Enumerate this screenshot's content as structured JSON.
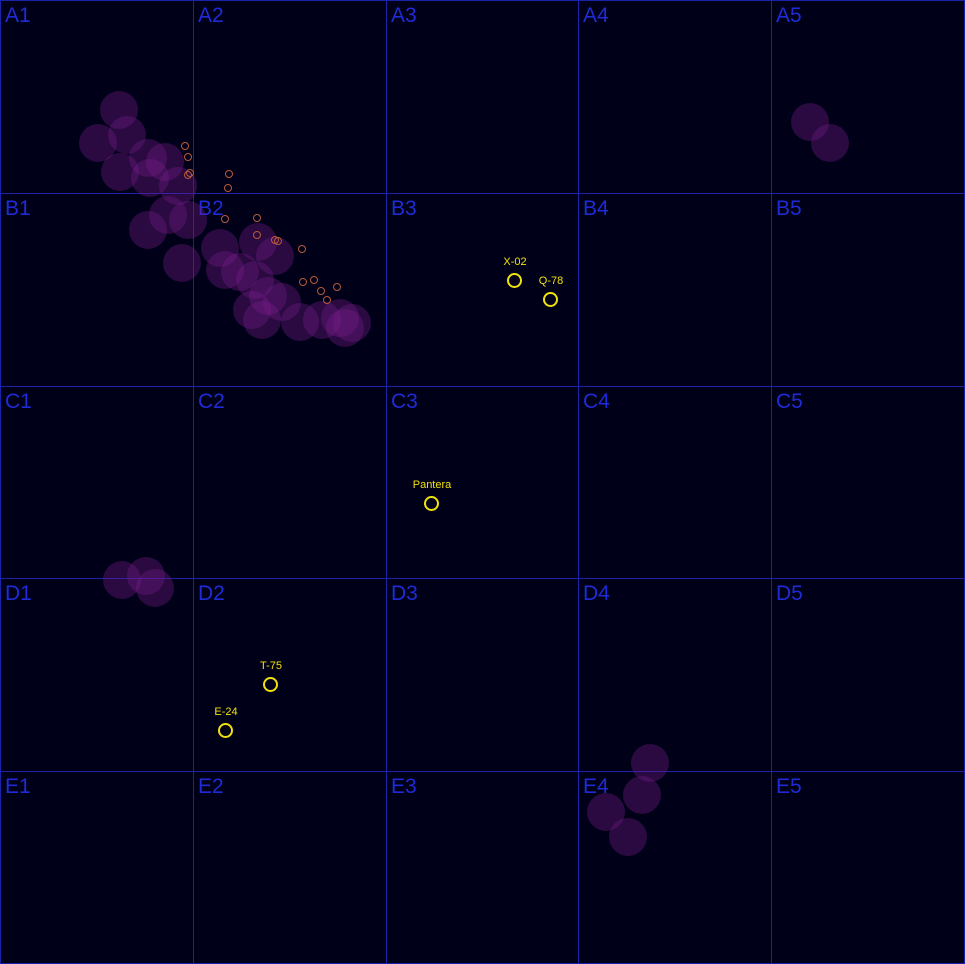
{
  "colors": {
    "background": "#000018",
    "grid_line": "#1a22a8",
    "grid_label": "#1f2bd6",
    "marker": "#f1e10d",
    "blob": "rgba(120,30,140,0.35)",
    "dot": "#b65a3a"
  },
  "grid": {
    "rows": [
      "A",
      "B",
      "C",
      "D",
      "E"
    ],
    "cols": [
      "1",
      "2",
      "3",
      "4",
      "5"
    ],
    "cells": [
      "A1",
      "A2",
      "A3",
      "A4",
      "A5",
      "B1",
      "B2",
      "B3",
      "B4",
      "B5",
      "C1",
      "C2",
      "C3",
      "C4",
      "C5",
      "D1",
      "D2",
      "D3",
      "D4",
      "D5",
      "E1",
      "E2",
      "E3",
      "E4",
      "E5"
    ]
  },
  "markers": [
    {
      "label": "X-02"
    },
    {
      "label": "Q-78"
    },
    {
      "label": "Pantera"
    },
    {
      "label": "T-75"
    },
    {
      "label": "E-24"
    }
  ]
}
